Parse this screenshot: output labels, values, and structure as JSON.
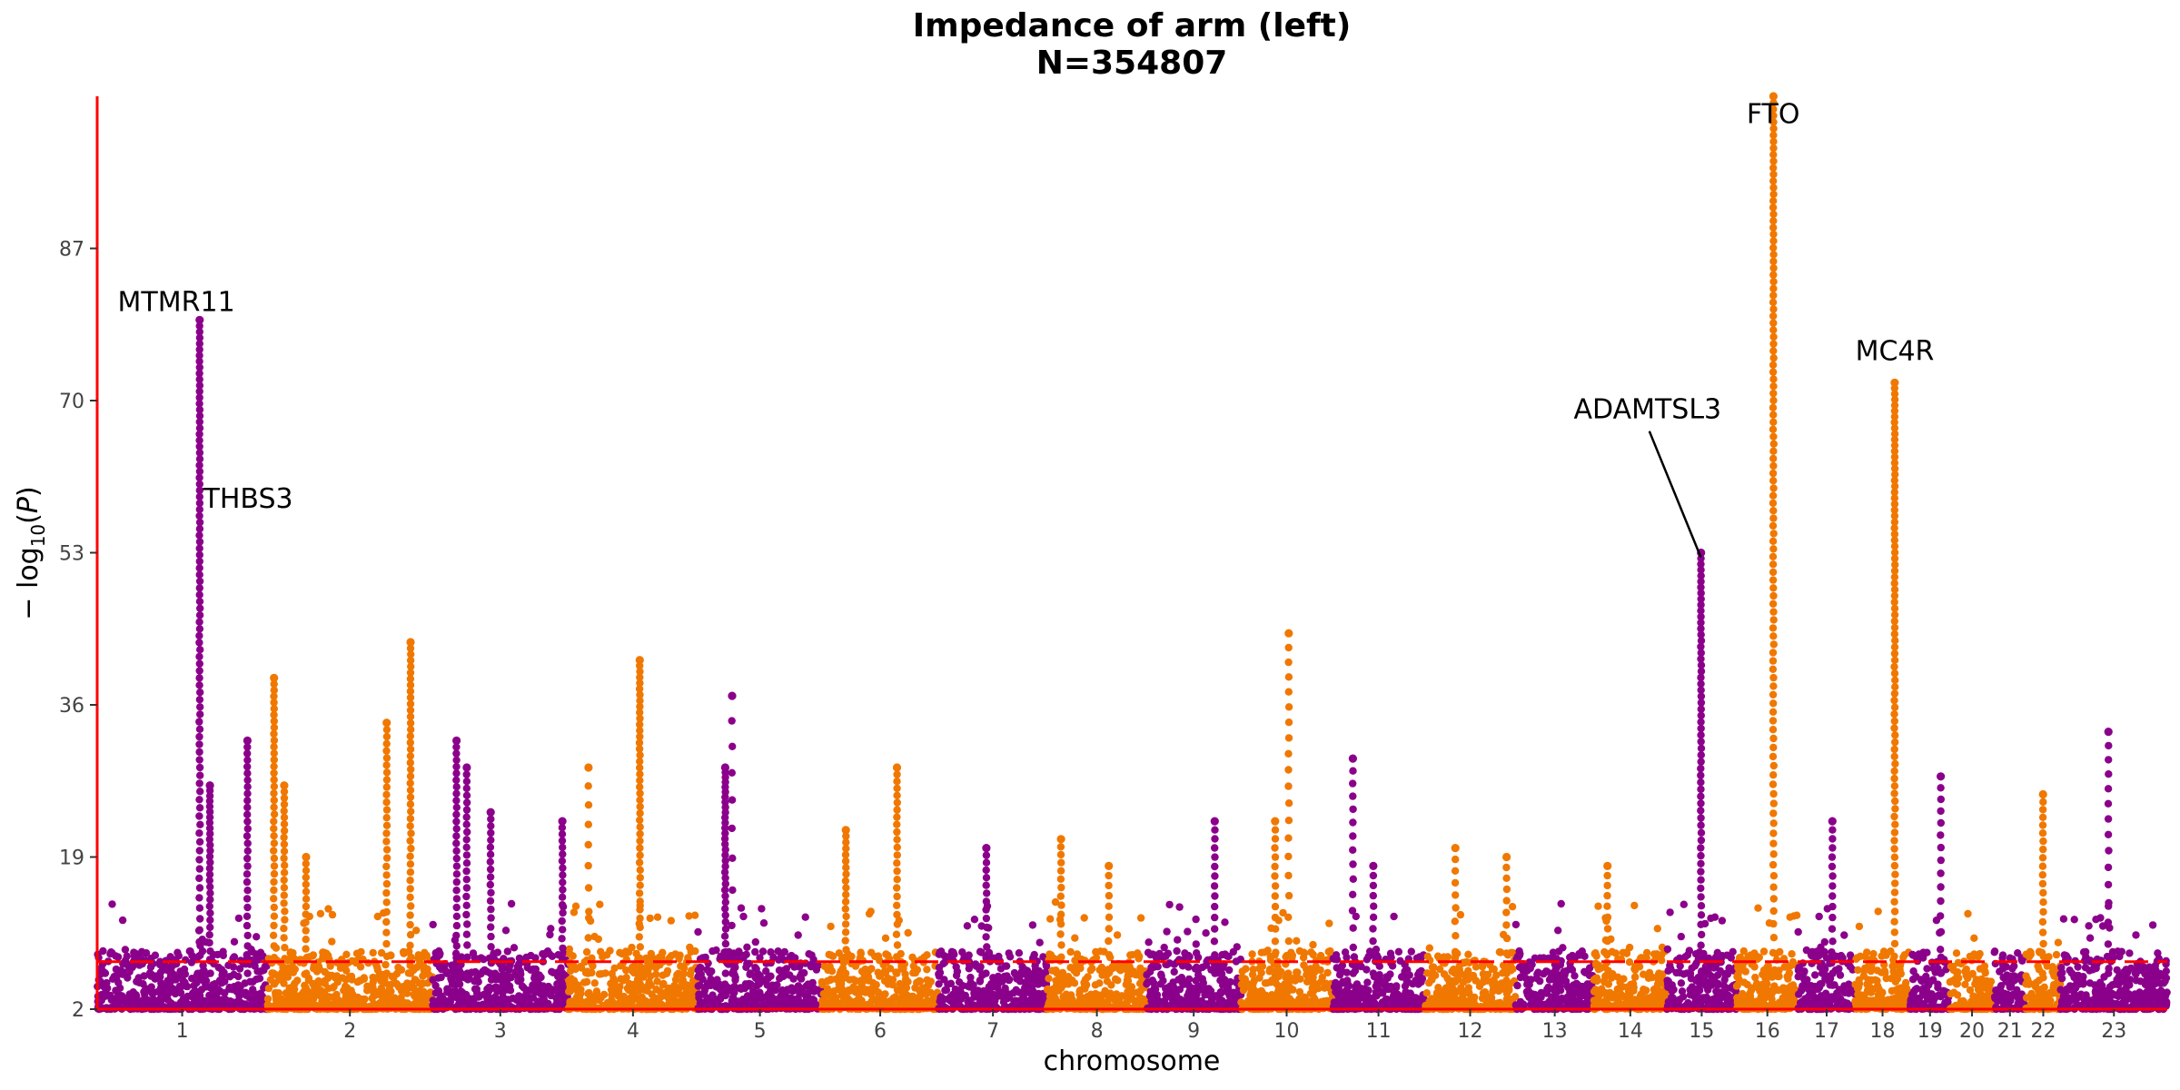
{
  "chart_data": {
    "type": "scatter",
    "subtype": "manhattan",
    "title": "Impedance of arm (left)",
    "subtitle": "N=354807",
    "xlabel": "chromosome",
    "ylabel": "− log10(P)",
    "ylim": [
      2,
      104
    ],
    "yticks": [
      2,
      19,
      36,
      53,
      70,
      87
    ],
    "significance_threshold": 7.3,
    "colors": {
      "odd": "#8B008B",
      "even": "#F07800",
      "axis": "#FF0000",
      "threshold": "#FF0000"
    },
    "chromosomes": [
      {
        "label": "1",
        "start": 0.0,
        "end": 248.9
      },
      {
        "label": "2",
        "start": 248.9,
        "end": 491.1
      },
      {
        "label": "3",
        "start": 491.1,
        "end": 689.4
      },
      {
        "label": "4",
        "start": 689.4,
        "end": 879.6
      },
      {
        "label": "5",
        "start": 879.6,
        "end": 1061.1
      },
      {
        "label": "6",
        "start": 1061.1,
        "end": 1231.9
      },
      {
        "label": "7",
        "start": 1231.9,
        "end": 1391.2
      },
      {
        "label": "8",
        "start": 1391.2,
        "end": 1536.3
      },
      {
        "label": "9",
        "start": 1536.3,
        "end": 1674.7
      },
      {
        "label": "10",
        "start": 1674.7,
        "end": 1808.5
      },
      {
        "label": "11",
        "start": 1808.5,
        "end": 1943.6
      },
      {
        "label": "12",
        "start": 1943.6,
        "end": 2076.9
      },
      {
        "label": "13",
        "start": 2076.9,
        "end": 2191.3
      },
      {
        "label": "14",
        "start": 2191.3,
        "end": 2298.3
      },
      {
        "label": "15",
        "start": 2298.3,
        "end": 2400.3
      },
      {
        "label": "16",
        "start": 2400.3,
        "end": 2490.6
      },
      {
        "label": "17",
        "start": 2490.6,
        "end": 2573.9
      },
      {
        "label": "18",
        "start": 2573.9,
        "end": 2654.3
      },
      {
        "label": "19",
        "start": 2654.3,
        "end": 2712.9
      },
      {
        "label": "20",
        "start": 2712.9,
        "end": 2777.3
      },
      {
        "label": "21",
        "start": 2777.3,
        "end": 2824.0
      },
      {
        "label": "22",
        "start": 2824.0,
        "end": 2874.8
      },
      {
        "label": "23",
        "start": 2874.8,
        "end": 3031.0
      }
    ],
    "peaks": [
      {
        "chr": "1",
        "pos": 150.0,
        "top": 79.0,
        "n": 90
      },
      {
        "chr": "1",
        "pos": 165.0,
        "top": 27.0,
        "n": 30
      },
      {
        "chr": "1",
        "pos": 220.0,
        "top": 32.0,
        "n": 30
      },
      {
        "chr": "2",
        "pos": 10.0,
        "top": 39.0,
        "n": 40
      },
      {
        "chr": "2",
        "pos": 25.0,
        "top": 27.0,
        "n": 25
      },
      {
        "chr": "2",
        "pos": 57.0,
        "top": 19.0,
        "n": 15
      },
      {
        "chr": "2",
        "pos": 175.0,
        "top": 34.0,
        "n": 30
      },
      {
        "chr": "2",
        "pos": 210.0,
        "top": 43.0,
        "n": 45
      },
      {
        "chr": "3",
        "pos": 35.0,
        "top": 32.0,
        "n": 30
      },
      {
        "chr": "3",
        "pos": 50.0,
        "top": 29.0,
        "n": 25
      },
      {
        "chr": "3",
        "pos": 85.0,
        "top": 24.0,
        "n": 20
      },
      {
        "chr": "3",
        "pos": 190.0,
        "top": 23.0,
        "n": 20
      },
      {
        "chr": "4",
        "pos": 30.0,
        "top": 29.0,
        "n": 10
      },
      {
        "chr": "4",
        "pos": 105.0,
        "top": 41.0,
        "n": 45
      },
      {
        "chr": "5",
        "pos": 50.0,
        "top": 37.0,
        "n": 10
      },
      {
        "chr": "5",
        "pos": 40.0,
        "top": 29.0,
        "n": 35
      },
      {
        "chr": "6",
        "pos": 35.0,
        "top": 22.0,
        "n": 20
      },
      {
        "chr": "6",
        "pos": 110.0,
        "top": 29.0,
        "n": 25
      },
      {
        "chr": "7",
        "pos": 70.0,
        "top": 20.0,
        "n": 15
      },
      {
        "chr": "8",
        "pos": 20.0,
        "top": 21.0,
        "n": 15
      },
      {
        "chr": "8",
        "pos": 90.0,
        "top": 18.0,
        "n": 10
      },
      {
        "chr": "9",
        "pos": 100.0,
        "top": 23.0,
        "n": 15
      },
      {
        "chr": "10",
        "pos": 70.0,
        "top": 44.0,
        "n": 20
      },
      {
        "chr": "10",
        "pos": 50.0,
        "top": 23.0,
        "n": 15
      },
      {
        "chr": "11",
        "pos": 30.0,
        "top": 30.0,
        "n": 15
      },
      {
        "chr": "11",
        "pos": 60.0,
        "top": 18.0,
        "n": 10
      },
      {
        "chr": "12",
        "pos": 45.0,
        "top": 20.0,
        "n": 10
      },
      {
        "chr": "12",
        "pos": 120.0,
        "top": 19.0,
        "n": 10
      },
      {
        "chr": "14",
        "pos": 20.0,
        "top": 18.0,
        "n": 10
      },
      {
        "chr": "15",
        "pos": 50.0,
        "top": 53.0,
        "n": 60
      },
      {
        "chr": "16",
        "pos": 54.0,
        "top": 104.0,
        "n": 110
      },
      {
        "chr": "17",
        "pos": 50.0,
        "top": 23.0,
        "n": 15
      },
      {
        "chr": "18",
        "pos": 58.0,
        "top": 72.0,
        "n": 85
      },
      {
        "chr": "19",
        "pos": 45.0,
        "top": 28.0,
        "n": 15
      },
      {
        "chr": "22",
        "pos": 25.0,
        "top": 26.0,
        "n": 20
      },
      {
        "chr": "23",
        "pos": 70.0,
        "top": 33.0,
        "n": 15
      }
    ],
    "annotations": [
      {
        "label": "MTMR11",
        "x": 30.0,
        "y": 80.0,
        "anchor": "start"
      },
      {
        "label": "THBS3",
        "x": 155.0,
        "y": 58.0,
        "anchor": "start"
      },
      {
        "label": "FTO",
        "x": 2454.0,
        "y": 101.0,
        "anchor": "middle"
      },
      {
        "label": "MC4R",
        "x": 2632.0,
        "y": 74.5,
        "anchor": "middle"
      },
      {
        "label": "ADAMTSL3",
        "x": 2270.0,
        "y": 68.0,
        "anchor": "middle",
        "point_x": 2348.0,
        "point_y": 53.0
      }
    ]
  }
}
